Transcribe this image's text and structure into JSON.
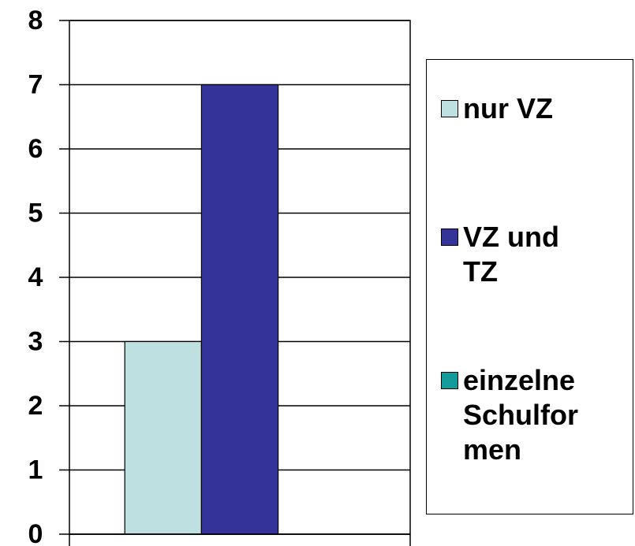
{
  "chart_data": {
    "type": "bar",
    "categories": [
      null
    ],
    "series": [
      {
        "name": "nur VZ",
        "color": "#bfe0e0",
        "values": [
          3
        ]
      },
      {
        "name": "VZ und TZ",
        "color": "#333399",
        "values": [
          7
        ]
      },
      {
        "name": "einzelne Schulformen",
        "color": "#139a9a",
        "values": [
          0
        ]
      }
    ],
    "ylim": [
      0,
      8
    ],
    "yticks": [
      0,
      1,
      2,
      3,
      4,
      5,
      6,
      7,
      8
    ],
    "grid": true,
    "legend": "right"
  }
}
